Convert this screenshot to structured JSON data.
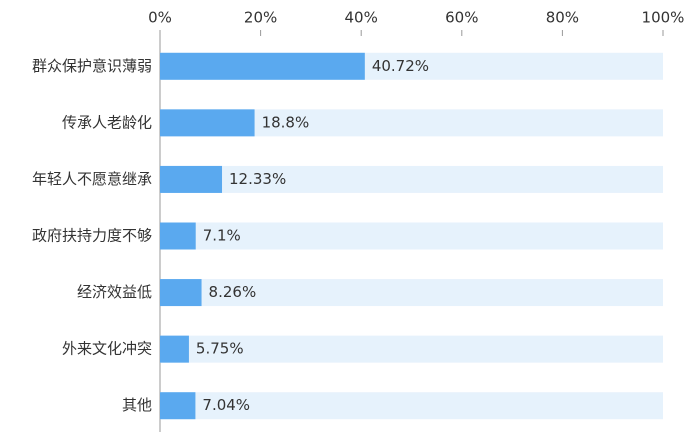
{
  "chart_data": {
    "type": "bar",
    "orientation": "horizontal",
    "categories": [
      "群众保护意识薄弱",
      "传承人老龄化",
      "年轻人不愿意继承",
      "政府扶持力度不够",
      "经济效益低",
      "外来文化冲突",
      "其他"
    ],
    "values": [
      40.72,
      18.8,
      12.33,
      7.1,
      8.26,
      5.75,
      7.04
    ],
    "value_labels": [
      "40.72%",
      "18.8%",
      "12.33%",
      "7.1%",
      "8.26%",
      "5.75%",
      "7.04%"
    ],
    "color": "#5aa9ef",
    "track_color": "#e6f2fc",
    "xlim": [
      0,
      100
    ],
    "xticks": [
      {
        "value": 0,
        "label": "0%"
      },
      {
        "value": 20,
        "label": "20%"
      },
      {
        "value": 40,
        "label": "40%"
      },
      {
        "value": 60,
        "label": "60%"
      },
      {
        "value": 80,
        "label": "80%"
      },
      {
        "value": 100,
        "label": "100%"
      }
    ]
  }
}
